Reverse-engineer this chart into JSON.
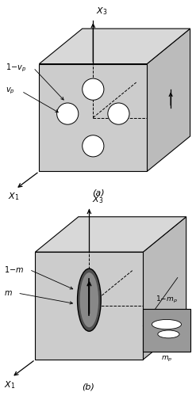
{
  "fig_width": 2.47,
  "fig_height": 5.0,
  "dpi": 100,
  "bg_color": "#ffffff",
  "cube_fill": "#c8c8c8",
  "cube_edge": "#000000",
  "top_face_fill": "#d8d8d8",
  "right_face_fill": "#c0c0c0",
  "front_face_fill": "#c8c8c8"
}
